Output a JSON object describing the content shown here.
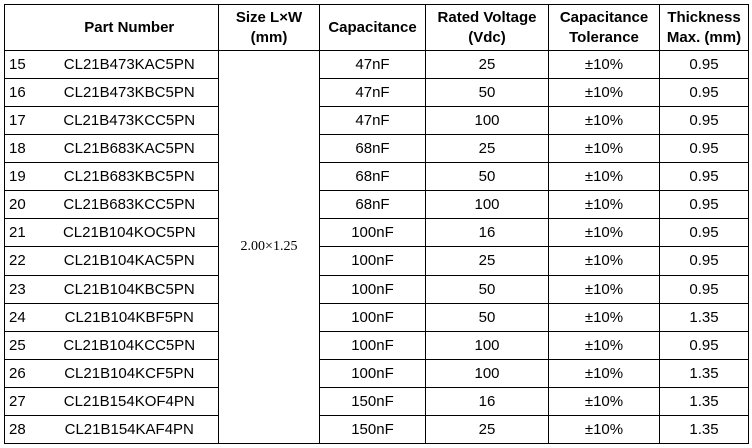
{
  "headers": {
    "part_number": "Part Number",
    "size_line1": "Size L×W",
    "size_line2": "(mm)",
    "capacitance": "Capacitance",
    "voltage_line1": "Rated Voltage",
    "voltage_line2": "(Vdc)",
    "tolerance_line1": "Capacitance",
    "tolerance_line2": "Tolerance",
    "thickness_line1": "Thickness",
    "thickness_line2": "Max. (mm)"
  },
  "size_value": "2.00×1.25",
  "rows": [
    {
      "no": "15",
      "part": "CL21B473KAC5PN",
      "cap": "47nF",
      "volt": "25",
      "tol": "±10%",
      "thick": "0.95"
    },
    {
      "no": "16",
      "part": "CL21B473KBC5PN",
      "cap": "47nF",
      "volt": "50",
      "tol": "±10%",
      "thick": "0.95"
    },
    {
      "no": "17",
      "part": "CL21B473KCC5PN",
      "cap": "47nF",
      "volt": "100",
      "tol": "±10%",
      "thick": "0.95"
    },
    {
      "no": "18",
      "part": "CL21B683KAC5PN",
      "cap": "68nF",
      "volt": "25",
      "tol": "±10%",
      "thick": "0.95"
    },
    {
      "no": "19",
      "part": "CL21B683KBC5PN",
      "cap": "68nF",
      "volt": "50",
      "tol": "±10%",
      "thick": "0.95"
    },
    {
      "no": "20",
      "part": "CL21B683KCC5PN",
      "cap": "68nF",
      "volt": "100",
      "tol": "±10%",
      "thick": "0.95"
    },
    {
      "no": "21",
      "part": "CL21B104KOC5PN",
      "cap": "100nF",
      "volt": "16",
      "tol": "±10%",
      "thick": "0.95"
    },
    {
      "no": "22",
      "part": "CL21B104KAC5PN",
      "cap": "100nF",
      "volt": "25",
      "tol": "±10%",
      "thick": "0.95"
    },
    {
      "no": "23",
      "part": "CL21B104KBC5PN",
      "cap": "100nF",
      "volt": "50",
      "tol": "±10%",
      "thick": "0.95"
    },
    {
      "no": "24",
      "part": "CL21B104KBF5PN",
      "cap": "100nF",
      "volt": "50",
      "tol": "±10%",
      "thick": "1.35"
    },
    {
      "no": "25",
      "part": "CL21B104KCC5PN",
      "cap": "100nF",
      "volt": "100",
      "tol": "±10%",
      "thick": "0.95"
    },
    {
      "no": "26",
      "part": "CL21B104KCF5PN",
      "cap": "100nF",
      "volt": "100",
      "tol": "±10%",
      "thick": "1.35"
    },
    {
      "no": "27",
      "part": "CL21B154KOF4PN",
      "cap": "150nF",
      "volt": "16",
      "tol": "±10%",
      "thick": "1.35"
    },
    {
      "no": "28",
      "part": "CL21B154KAF4PN",
      "cap": "150nF",
      "volt": "25",
      "tol": "±10%",
      "thick": "1.35"
    }
  ]
}
